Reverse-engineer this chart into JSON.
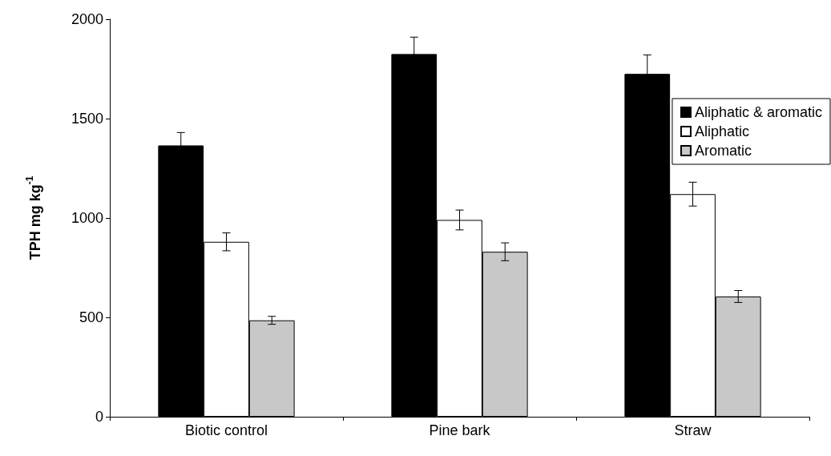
{
  "chart_data": {
    "type": "bar",
    "ylabel": "TPH mg kg$^{-1}$",
    "categories": [
      "Biotic control",
      "Pine bark",
      "Straw"
    ],
    "series": [
      {
        "name": "Aliphatic & aromatic",
        "color": "#000000",
        "values": [
          1365,
          1825,
          1725
        ],
        "errors": [
          65,
          85,
          95
        ]
      },
      {
        "name": "Aliphatic",
        "color": "#ffffff",
        "values": [
          880,
          990,
          1120
        ],
        "errors": [
          45,
          50,
          60
        ]
      },
      {
        "name": "Aromatic",
        "color": "#c8c8c8",
        "values": [
          485,
          830,
          605
        ],
        "errors": [
          20,
          45,
          30
        ]
      }
    ],
    "ylim": [
      0,
      2000
    ],
    "yticks": [
      0,
      500,
      1000,
      1500,
      2000
    ],
    "legend": "top right"
  }
}
